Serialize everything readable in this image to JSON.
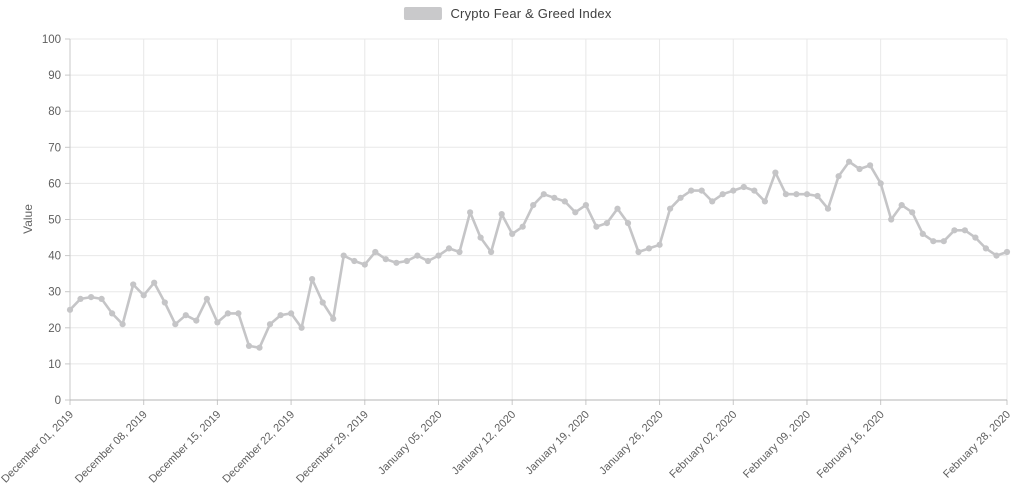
{
  "legend": {
    "label": "Crypto Fear & Greed Index",
    "swatch_color": "#c9c9cb"
  },
  "colors": {
    "line": "#c5c5c7",
    "marker": "#c5c5c7",
    "gridline": "#e8e8e8",
    "axis_bottom": "#b5b5b5",
    "axis_left": "#c8c8c8",
    "tick": "#c8c8c8",
    "tick_text": "#5f5f5f",
    "background": "#ffffff"
  },
  "chart_data": {
    "type": "line",
    "title": "Crypto Fear & Greed Index",
    "xlabel": "",
    "ylabel": "Value",
    "ylim": [
      0,
      100
    ],
    "grid": true,
    "legend_position": "top-center",
    "y_ticks": [
      0,
      10,
      20,
      30,
      40,
      50,
      60,
      70,
      80,
      90,
      100
    ],
    "x_tick_labels": [
      "December 01, 2019",
      "December 08, 2019",
      "December 15, 2019",
      "December 22, 2019",
      "December 29, 2019",
      "January 05, 2020",
      "January 12, 2020",
      "January 19, 2020",
      "January 26, 2020",
      "February 02, 2020",
      "February 09, 2020",
      "February 16, 2020",
      "February 28, 2020"
    ],
    "x_tick_day_index": [
      0,
      7,
      14,
      21,
      28,
      35,
      42,
      49,
      56,
      63,
      70,
      77,
      89
    ],
    "x_range": [
      "December 01, 2019",
      "February 28, 2020"
    ],
    "series": [
      {
        "name": "Crypto Fear & Greed Index",
        "color": "#c5c5c7",
        "values": [
          25,
          28,
          28.5,
          28,
          24,
          21,
          32,
          29,
          32.5,
          27,
          21,
          23.5,
          22,
          28,
          21.5,
          24,
          24,
          15,
          14.5,
          21,
          23.5,
          24,
          20,
          33.5,
          27,
          22.5,
          40,
          38.5,
          37.5,
          41,
          39,
          38,
          38.5,
          40,
          38.5,
          40,
          42,
          41,
          52,
          45,
          41,
          51.5,
          46,
          48,
          54,
          57,
          56,
          55,
          52,
          54,
          48,
          49,
          53,
          49,
          41,
          42,
          43,
          53,
          56,
          58,
          58,
          55,
          57,
          58,
          59,
          58,
          55,
          63,
          57,
          57,
          57,
          56.5,
          53,
          62,
          66,
          64,
          65,
          60,
          50,
          54,
          52,
          46,
          44,
          44,
          47,
          47,
          45,
          42,
          40,
          41
        ]
      }
    ]
  }
}
